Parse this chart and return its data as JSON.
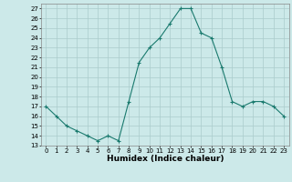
{
  "x": [
    0,
    1,
    2,
    3,
    4,
    5,
    6,
    7,
    8,
    9,
    10,
    11,
    12,
    13,
    14,
    15,
    16,
    17,
    18,
    19,
    20,
    21,
    22,
    23
  ],
  "y": [
    17,
    16,
    15,
    14.5,
    14,
    13.5,
    14,
    13.5,
    17.5,
    21.5,
    23,
    24,
    25.5,
    27,
    27,
    24.5,
    24,
    21,
    17.5,
    17,
    17.5,
    17.5,
    17,
    16
  ],
  "line_color": "#1a7a6e",
  "marker": "+",
  "marker_size": 3,
  "xlabel": "Humidex (Indice chaleur)",
  "ylim": [
    13,
    27.5
  ],
  "xlim": [
    -0.5,
    23.5
  ],
  "yticks": [
    13,
    14,
    15,
    16,
    17,
    18,
    19,
    20,
    21,
    22,
    23,
    24,
    25,
    26,
    27
  ],
  "xticks": [
    0,
    1,
    2,
    3,
    4,
    5,
    6,
    7,
    8,
    9,
    10,
    11,
    12,
    13,
    14,
    15,
    16,
    17,
    18,
    19,
    20,
    21,
    22,
    23
  ],
  "bg_color": "#cce9e9",
  "grid_color": "#aacccc",
  "tick_fontsize": 5,
  "xlabel_fontsize": 6.5
}
